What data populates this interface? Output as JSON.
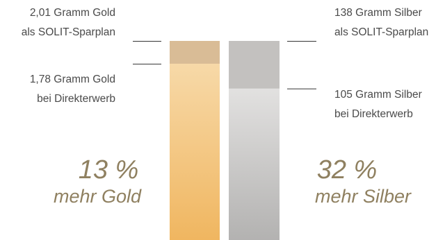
{
  "chart_data": {
    "type": "bar",
    "ylim": [
      0,
      2.01
    ],
    "categories": [
      "Gold",
      "Silber"
    ],
    "bars": [
      {
        "material": "Gold",
        "sparplan_value": 2.01,
        "direkt_value": 1.78,
        "label_sparplan": [
          "2,01 Gramm Gold",
          "als SOLIT-Sparplan"
        ],
        "label_direkt": [
          "1,78 Gramm Gold",
          "bei Direkterwerb"
        ],
        "percent": "13 %",
        "percent_caption": "mehr Gold",
        "color_top": "#d9bc96",
        "color_fill_top": "#f7d9a8",
        "color_fill_bottom": "#f0b660"
      },
      {
        "material": "Silber",
        "sparplan_value": 138,
        "direkt_value": 105,
        "label_sparplan": [
          "138 Gramm Silber",
          "als SOLIT-Sparplan"
        ],
        "label_direkt": [
          "105 Gramm Silber",
          "bei Direkterwerb"
        ],
        "percent": "32 %",
        "percent_caption": "mehr Silber",
        "color_top": "#c3c1bf",
        "color_fill_top": "#e2e1e0",
        "color_fill_bottom": "#b3b2b1"
      }
    ],
    "grid": false,
    "legend": "none"
  },
  "colors": {
    "text": "#4a4a4a",
    "percent_text": "#8f8060",
    "leader_line": "#333333"
  }
}
